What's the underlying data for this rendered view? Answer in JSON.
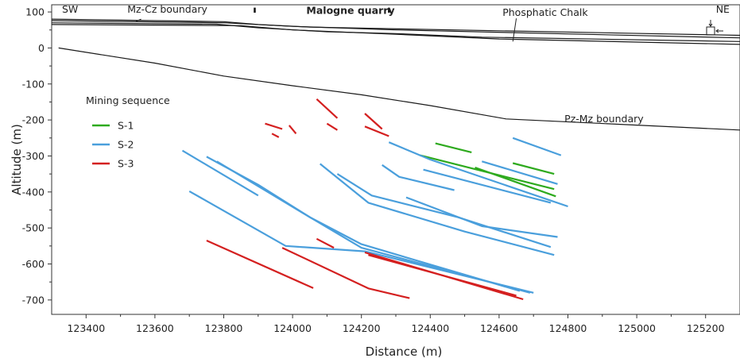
{
  "chart_data": {
    "type": "line",
    "title": "",
    "xlabel": "Distance (m)",
    "ylabel": "Altitude (m)",
    "xlim": [
      123300,
      125300
    ],
    "ylim": [
      -740,
      120
    ],
    "xticks": [
      123400,
      123600,
      123800,
      124000,
      124200,
      124400,
      124600,
      124800,
      125000,
      125200
    ],
    "yticks": [
      100,
      0,
      -100,
      -200,
      -300,
      -400,
      -500,
      -600,
      -700
    ],
    "grid": false,
    "legend": {
      "title": "Mining sequence",
      "placement": "upper-left",
      "entries": [
        {
          "label": "S-1",
          "color": "#2eaa1e"
        },
        {
          "label": "S-2",
          "color": "#4a9fdc"
        },
        {
          "label": "S-3",
          "color": "#d42020"
        }
      ]
    },
    "annotations": [
      {
        "text": "SW",
        "x": 123330,
        "y": 107,
        "style": "normal"
      },
      {
        "text": "Mz-Cz boundary",
        "x": 123520,
        "y": 107,
        "style": "normal"
      },
      {
        "text": "Malogne quarry",
        "x": 124040,
        "y": 103,
        "style": "bold"
      },
      {
        "text": "Phosphatic Chalk",
        "x": 124610,
        "y": 98,
        "style": "normal"
      },
      {
        "text": "NE",
        "x": 125230,
        "y": 107,
        "style": "normal"
      },
      {
        "text": "Pz-Mz boundary",
        "x": 124790,
        "y": -198,
        "style": "normal"
      }
    ],
    "boundaries": [
      {
        "name": "Mz-Cz boundary",
        "color": "#1a1a1a",
        "x": [
          123300,
          123800,
          123900,
          124050,
          124250,
          125300
        ],
        "y": [
          80,
          73,
          65,
          58,
          54,
          35
        ]
      },
      {
        "name": "Phosphatic Chalk top",
        "color": "#1a1a1a",
        "x": [
          123300,
          123800,
          124000,
          124300,
          125300
        ],
        "y": [
          76,
          70,
          60,
          50,
          28
        ]
      },
      {
        "name": "Phosphatic Chalk",
        "color": "#1a1a1a",
        "x": [
          123300,
          123780,
          123900,
          124100,
          124300,
          124550,
          125300
        ],
        "y": [
          70,
          66,
          56,
          45,
          40,
          30,
          18
        ]
      },
      {
        "name": "Phosphatic Chalk base",
        "color": "#1a1a1a",
        "x": [
          123300,
          123850,
          124000,
          124300,
          124600,
          125300
        ],
        "y": [
          65,
          62,
          50,
          38,
          25,
          10
        ]
      },
      {
        "name": "Pz-Mz boundary",
        "color": "#1a1a1a",
        "x": [
          123320,
          123600,
          123800,
          124000,
          124200,
          124400,
          124620,
          125300
        ],
        "y": [
          0,
          -42,
          -78,
          -105,
          -130,
          -160,
          -197,
          -228
        ]
      }
    ],
    "quarry_markers": [
      123890,
      124280
    ],
    "series": [
      {
        "name": "S-1",
        "color": "#2eaa1e",
        "segments": [
          {
            "x": [
              124415,
              124520
            ],
            "y": [
              -265,
              -290
            ]
          },
          {
            "x": [
              124370,
              124760
            ],
            "y": [
              -298,
              -392
            ]
          },
          {
            "x": [
              124530,
              124765
            ],
            "y": [
              -332,
              -412
            ]
          },
          {
            "x": [
              124640,
              124760
            ],
            "y": [
              -320,
              -350
            ]
          }
        ]
      },
      {
        "name": "S-2",
        "color": "#4a9fdc",
        "segments": [
          {
            "x": [
              123680,
              123900
            ],
            "y": [
              -285,
              -410
            ]
          },
          {
            "x": [
              123750,
              123900,
              124050,
              124200,
              124690
            ],
            "y": [
              -302,
              -380,
              -470,
              -555,
              -680
            ]
          },
          {
            "x": [
              123780,
              124050,
              124200,
              124660
            ],
            "y": [
              -315,
              -470,
              -545,
              -675
            ]
          },
          {
            "x": [
              123700,
              123980,
              124210,
              124700
            ],
            "y": [
              -398,
              -550,
              -565,
              -680
            ]
          },
          {
            "x": [
              124080,
              124220,
              124500,
              124760
            ],
            "y": [
              -322,
              -430,
              -510,
              -575
            ]
          },
          {
            "x": [
              124130,
              124230,
              124480,
              124750
            ],
            "y": [
              -350,
              -410,
              -470,
              -553
            ]
          },
          {
            "x": [
              124330,
              124550,
              124770
            ],
            "y": [
              -415,
              -495,
              -525
            ]
          },
          {
            "x": [
              124280,
              124400,
              124800
            ],
            "y": [
              -262,
              -310,
              -440
            ]
          },
          {
            "x": [
              124380,
              124750
            ],
            "y": [
              -338,
              -430
            ]
          },
          {
            "x": [
              124260,
              124310,
              124470
            ],
            "y": [
              -325,
              -358,
              -395
            ]
          },
          {
            "x": [
              124550,
              124770
            ],
            "y": [
              -315,
              -378
            ]
          },
          {
            "x": [
              124640,
              124780
            ],
            "y": [
              -250,
              -298
            ]
          }
        ]
      },
      {
        "name": "S-3",
        "color": "#d42020",
        "segments": [
          {
            "x": [
              123750,
              124060
            ],
            "y": [
              -535,
              -667
            ]
          },
          {
            "x": [
              123970,
              124220,
              124340
            ],
            "y": [
              -555,
              -668,
              -695
            ]
          },
          {
            "x": [
              124210,
              124670
            ],
            "y": [
              -568,
              -698
            ]
          },
          {
            "x": [
              124220,
              124650
            ],
            "y": [
              -575,
              -688
            ]
          },
          {
            "x": [
              124070,
              124120
            ],
            "y": [
              -530,
              -555
            ]
          },
          {
            "x": [
              123920,
              123970
            ],
            "y": [
              -210,
              -225
            ]
          },
          {
            "x": [
              123940,
              123960
            ],
            "y": [
              -238,
              -248
            ]
          },
          {
            "x": [
              123990,
              124010
            ],
            "y": [
              -215,
              -238
            ]
          },
          {
            "x": [
              124070,
              124130
            ],
            "y": [
              -142,
              -195
            ]
          },
          {
            "x": [
              124100,
              124130
            ],
            "y": [
              -210,
              -228
            ]
          },
          {
            "x": [
              124210,
              124260
            ],
            "y": [
              -182,
              -225
            ]
          },
          {
            "x": [
              124210,
              124280
            ],
            "y": [
              -218,
              -245
            ]
          }
        ]
      }
    ]
  }
}
